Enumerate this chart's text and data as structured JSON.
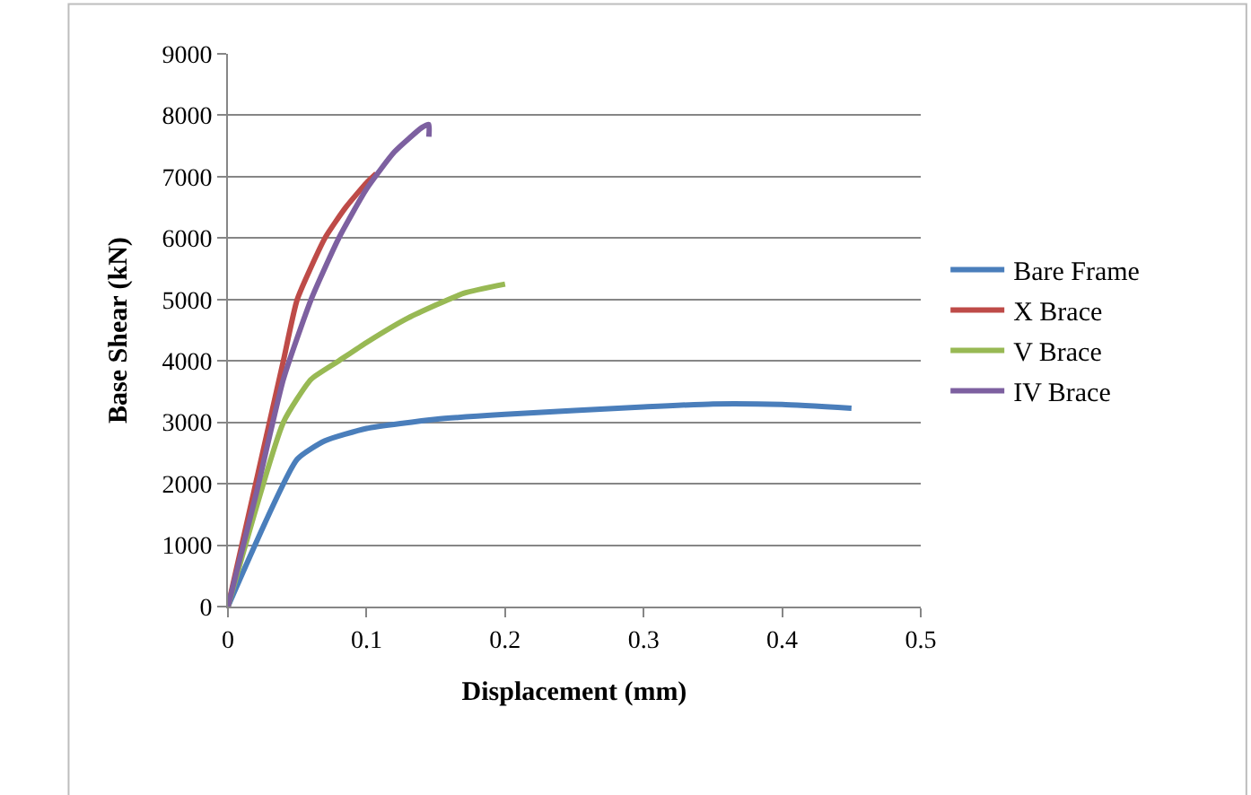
{
  "chart_data": {
    "type": "line",
    "xlabel": "Displacement (mm)",
    "ylabel": "Base Shear (kN)",
    "xlim": [
      0,
      0.5
    ],
    "xticks": [
      0,
      0.1,
      0.2,
      0.3,
      0.4,
      0.5
    ],
    "ylim": [
      0,
      9000
    ],
    "yticks": [
      0,
      1000,
      2000,
      3000,
      4000,
      5000,
      6000,
      7000,
      8000,
      9000
    ],
    "grid": "y",
    "legend": "right",
    "marker": "none",
    "line_style": "solid",
    "series": [
      {
        "name": "Bare Frame",
        "color": "#4a7ebb",
        "x": [
          0,
          0.05,
          0.07,
          0.1,
          0.15,
          0.2,
          0.3,
          0.35,
          0.4,
          0.45
        ],
        "values": [
          0,
          2400,
          2700,
          2900,
          3050,
          3130,
          3250,
          3300,
          3290,
          3230
        ]
      },
      {
        "name": "X Brace",
        "color": "#be4b48",
        "x": [
          0,
          0.02,
          0.04,
          0.05,
          0.07,
          0.085,
          0.1,
          0.107
        ],
        "values": [
          0,
          2000,
          4000,
          5000,
          6000,
          6500,
          6900,
          7050
        ]
      },
      {
        "name": "V Brace",
        "color": "#98b954",
        "x": [
          0,
          0.04,
          0.06,
          0.08,
          0.1,
          0.13,
          0.17,
          0.2
        ],
        "values": [
          0,
          3000,
          3700,
          4000,
          4300,
          4700,
          5100,
          5250
        ]
      },
      {
        "name": "IV Brace",
        "color": "#7d60a0",
        "x": [
          0,
          0.02,
          0.04,
          0.06,
          0.08,
          0.1,
          0.12,
          0.14,
          0.145,
          0.145
        ],
        "values": [
          0,
          1800,
          3700,
          5000,
          6000,
          6800,
          7400,
          7800,
          7850,
          7650
        ]
      }
    ]
  }
}
